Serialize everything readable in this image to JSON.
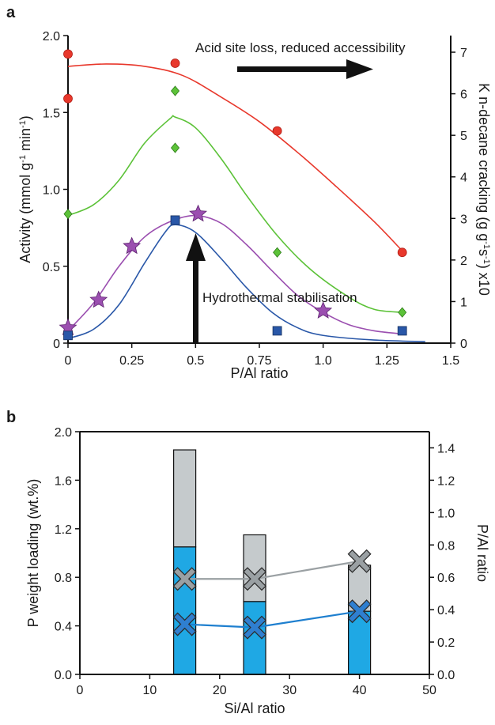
{
  "chart_data": [
    {
      "panel": "a",
      "type": "scatter",
      "xlabel": "P/Al ratio",
      "ylabel_left": "Activity (mmol g⁻¹ min⁻¹)",
      "ylabel_right": "K n-decane cracking (g g⁻¹s⁻¹) x10",
      "xlim": [
        0,
        1.5
      ],
      "ylim_left": [
        0,
        2.0
      ],
      "ylim_right": [
        0,
        7.4
      ],
      "xticks": [
        "0",
        "0.25",
        "0.5",
        "0.75",
        "1.0",
        "1.25",
        "1.5"
      ],
      "yticks_left": [
        "0",
        "0.5",
        "1.0",
        "1.5",
        "2.0"
      ],
      "yticks_right": [
        "0",
        "1",
        "2",
        "3",
        "4",
        "5",
        "6",
        "7"
      ],
      "annotations": [
        {
          "text": "Acid site loss, reduced accessibility"
        },
        {
          "text": "Hydrothermal stabilisation"
        }
      ],
      "series": [
        {
          "marker": "circle",
          "color": "#e8382c",
          "axis": "left",
          "points": [
            [
              0,
              1.88
            ],
            [
              0,
              1.59
            ],
            [
              0.42,
              1.82
            ],
            [
              0.82,
              1.38
            ],
            [
              1.31,
              0.59
            ]
          ],
          "fit": [
            [
              0,
              1.8
            ],
            [
              0.15,
              1.815
            ],
            [
              0.3,
              1.8
            ],
            [
              0.45,
              1.74
            ],
            [
              0.6,
              1.6
            ],
            [
              0.75,
              1.44
            ],
            [
              0.9,
              1.24
            ],
            [
              1.05,
              1.02
            ],
            [
              1.2,
              0.79
            ],
            [
              1.31,
              0.6
            ]
          ]
        },
        {
          "marker": "diamond",
          "color": "#5cc238",
          "axis": "left",
          "points": [
            [
              0,
              0.84
            ],
            [
              0.42,
              1.64
            ],
            [
              0.42,
              1.27
            ],
            [
              0.82,
              0.59
            ],
            [
              1.31,
              0.2
            ]
          ],
          "fit": [
            [
              0,
              0.83
            ],
            [
              0.1,
              0.9
            ],
            [
              0.2,
              1.06
            ],
            [
              0.3,
              1.3
            ],
            [
              0.4,
              1.46
            ],
            [
              0.42,
              1.47
            ],
            [
              0.5,
              1.4
            ],
            [
              0.6,
              1.2
            ],
            [
              0.7,
              0.96
            ],
            [
              0.82,
              0.7
            ],
            [
              0.95,
              0.48
            ],
            [
              1.1,
              0.3
            ],
            [
              1.2,
              0.22
            ],
            [
              1.31,
              0.2
            ]
          ]
        },
        {
          "marker": "star",
          "color": "#9b4fb0",
          "axis": "left",
          "points": [
            [
              0,
              0.1
            ],
            [
              0.12,
              0.28
            ],
            [
              0.25,
              0.63
            ],
            [
              0.51,
              0.84
            ],
            [
              1.0,
              0.21
            ]
          ],
          "fit": [
            [
              0,
              0.08
            ],
            [
              0.1,
              0.26
            ],
            [
              0.2,
              0.5
            ],
            [
              0.3,
              0.69
            ],
            [
              0.4,
              0.79
            ],
            [
              0.5,
              0.83
            ],
            [
              0.6,
              0.78
            ],
            [
              0.7,
              0.64
            ],
            [
              0.8,
              0.47
            ],
            [
              0.9,
              0.31
            ],
            [
              1.0,
              0.2
            ],
            [
              1.1,
              0.12
            ],
            [
              1.2,
              0.08
            ],
            [
              1.31,
              0.06
            ]
          ]
        },
        {
          "marker": "square",
          "color": "#2957a8",
          "axis": "left",
          "points": [
            [
              0,
              0.05
            ],
            [
              0.42,
              0.8
            ],
            [
              0.82,
              0.08
            ],
            [
              1.31,
              0.08
            ]
          ],
          "fit": [
            [
              0,
              0.03
            ],
            [
              0.1,
              0.09
            ],
            [
              0.2,
              0.25
            ],
            [
              0.3,
              0.52
            ],
            [
              0.38,
              0.72
            ],
            [
              0.42,
              0.77
            ],
            [
              0.5,
              0.72
            ],
            [
              0.6,
              0.55
            ],
            [
              0.7,
              0.36
            ],
            [
              0.8,
              0.2
            ],
            [
              0.9,
              0.1
            ],
            [
              1.0,
              0.05
            ],
            [
              1.2,
              0.02
            ],
            [
              1.4,
              0.01
            ]
          ]
        }
      ]
    },
    {
      "panel": "b",
      "type": "bar",
      "xlabel": "Si/Al ratio",
      "ylabel_left": "P weight loading (wt.%)",
      "ylabel_right": "P/Al ratio",
      "xlim": [
        0,
        50
      ],
      "ylim_left": [
        0,
        2.0
      ],
      "ylim_right": [
        0,
        1.5
      ],
      "xticks": [
        "0",
        "10",
        "20",
        "30",
        "40",
        "50"
      ],
      "yticks_left": [
        "0.0",
        "0.4",
        "0.8",
        "1.2",
        "1.6",
        "2.0"
      ],
      "yticks_right": [
        "0.0",
        "0.2",
        "0.4",
        "0.6",
        "0.8",
        "1.0",
        "1.2",
        "1.4"
      ],
      "bars": [
        {
          "x": 15,
          "total": 1.85,
          "lower": 1.05
        },
        {
          "x": 25,
          "total": 1.15,
          "lower": 0.6
        },
        {
          "x": 40,
          "total": 0.9,
          "lower": 0.52
        }
      ],
      "bar_colors": {
        "upper": "#c5cacc",
        "lower": "#1fa8e4"
      },
      "lines": [
        {
          "color": "#9aa0a3",
          "marker_color": "#9aa0a3",
          "points": [
            [
              15,
              0.59
            ],
            [
              25,
              0.59
            ],
            [
              40,
              0.7
            ]
          ]
        },
        {
          "color": "#1e7fcf",
          "marker_color": "#2f7fd0",
          "points": [
            [
              15,
              0.31
            ],
            [
              25,
              0.29
            ],
            [
              40,
              0.39
            ]
          ]
        }
      ]
    }
  ]
}
